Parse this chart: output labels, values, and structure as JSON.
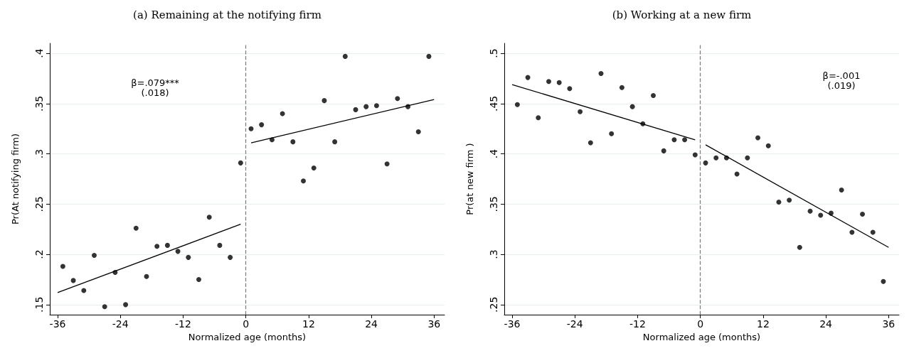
{
  "chart_data": [
    {
      "type": "scatter",
      "title": "(a) Remaining at the notifying firm",
      "xlabel": "Normalized age (months)",
      "ylabel": "Pr(At notifying firm)",
      "annotations": [
        "β=.079***",
        "(.018)"
      ],
      "xlim": [
        -37.5,
        38
      ],
      "xticks": [
        -36,
        -24,
        -12,
        0,
        12,
        24,
        36
      ],
      "ylim": [
        0.14,
        0.41
      ],
      "yticks": [
        {
          "value": 0.15,
          "label": ".15"
        },
        {
          "value": 0.2,
          "label": ".2"
        },
        {
          "value": 0.25,
          "label": ".25"
        },
        {
          "value": 0.3,
          "label": ".3"
        },
        {
          "value": 0.35,
          "label": ".35"
        },
        {
          "value": 0.4,
          "label": ".4"
        }
      ],
      "grid": "y",
      "ref_lines": [
        {
          "axis": "x",
          "value": 0,
          "label": null,
          "color": "#808080",
          "line_style": "dashed"
        }
      ],
      "series": [
        {
          "marker": "circle",
          "color": "#000000",
          "x": [
            -35,
            -33,
            -31,
            -29,
            -27,
            -25,
            -23,
            -21,
            -19,
            -17,
            -15,
            -13,
            -11,
            -9,
            -7,
            -5,
            -3,
            -1,
            1,
            3,
            5,
            7,
            9,
            11,
            13,
            15,
            17,
            19,
            21,
            23,
            25,
            27,
            29,
            31,
            33,
            35
          ],
          "values": [
            0.188,
            0.174,
            0.164,
            0.199,
            0.148,
            0.182,
            0.15,
            0.226,
            0.178,
            0.208,
            0.209,
            0.203,
            0.197,
            0.175,
            0.237,
            0.209,
            0.197,
            0.291,
            0.325,
            0.329,
            0.314,
            0.34,
            0.312,
            0.273,
            0.286,
            0.353,
            0.312,
            0.397,
            0.344,
            0.347,
            0.348,
            0.29,
            0.355,
            0.347,
            0.322,
            0.397
          ]
        },
        {
          "type": "line",
          "marker": "none",
          "color": "#000000",
          "x": [
            -36,
            -1
          ],
          "values": [
            0.162,
            0.23
          ]
        },
        {
          "type": "line",
          "marker": "none",
          "color": "#000000",
          "x": [
            1,
            36
          ],
          "values": [
            0.311,
            0.354
          ]
        }
      ]
    },
    {
      "type": "scatter",
      "title": "(b) Working at a new firm",
      "xlabel": "Normalized age (months)",
      "ylabel": "Pr(at new firm )",
      "annotations": [
        "β=-.001",
        "(.019)"
      ],
      "xlim": [
        -37.5,
        38
      ],
      "xticks": [
        -36,
        -24,
        -12,
        0,
        12,
        24,
        36
      ],
      "ylim": [
        0.24,
        0.51
      ],
      "yticks": [
        {
          "value": 0.25,
          "label": ".25"
        },
        {
          "value": 0.3,
          "label": ".3"
        },
        {
          "value": 0.35,
          "label": ".35"
        },
        {
          "value": 0.4,
          "label": ".4"
        },
        {
          "value": 0.45,
          "label": ".45"
        },
        {
          "value": 0.5,
          "label": ".5"
        }
      ],
      "grid": "y",
      "ref_lines": [
        {
          "axis": "x",
          "value": 0,
          "label": null,
          "color": "#808080",
          "line_style": "dashed"
        }
      ],
      "series": [
        {
          "marker": "circle",
          "color": "#000000",
          "x": [
            -35,
            -33,
            -31,
            -29,
            -27,
            -25,
            -23,
            -21,
            -19,
            -17,
            -15,
            -13,
            -11,
            -9,
            -7,
            -5,
            -3,
            -1,
            1,
            3,
            5,
            7,
            9,
            11,
            13,
            15,
            17,
            19,
            21,
            23,
            25,
            27,
            29,
            31,
            33,
            35
          ],
          "values": [
            0.449,
            0.476,
            0.436,
            0.472,
            0.471,
            0.465,
            0.442,
            0.411,
            0.48,
            0.42,
            0.466,
            0.447,
            0.43,
            0.458,
            0.403,
            0.414,
            0.414,
            0.399,
            0.391,
            0.396,
            0.396,
            0.38,
            0.396,
            0.416,
            0.408,
            0.352,
            0.354,
            0.307,
            0.343,
            0.339,
            0.341,
            0.364,
            0.322,
            0.34,
            0.322,
            0.273
          ]
        },
        {
          "type": "line",
          "marker": "none",
          "color": "#000000",
          "x": [
            -36,
            -1
          ],
          "values": [
            0.469,
            0.414
          ]
        },
        {
          "type": "line",
          "marker": "none",
          "color": "#000000",
          "x": [
            1,
            36
          ],
          "values": [
            0.409,
            0.307
          ]
        }
      ]
    }
  ]
}
